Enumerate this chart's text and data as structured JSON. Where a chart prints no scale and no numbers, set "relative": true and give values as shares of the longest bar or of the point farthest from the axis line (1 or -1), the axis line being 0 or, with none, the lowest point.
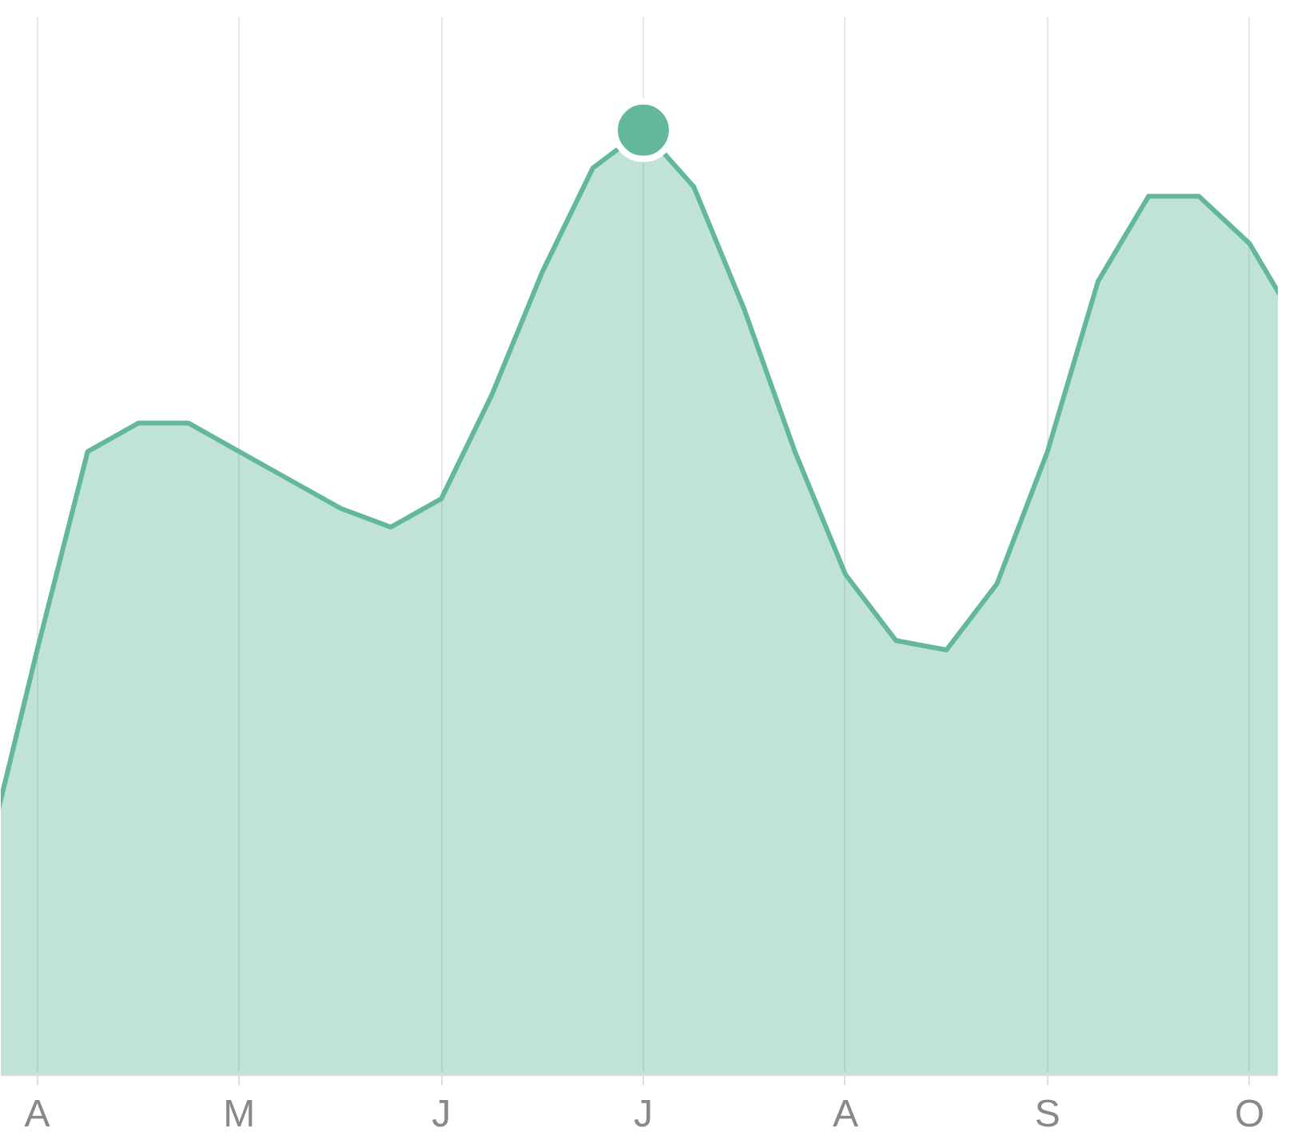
{
  "chart_data": {
    "type": "area",
    "relative": true,
    "grid": "x",
    "categories": [
      null,
      "A",
      null,
      null,
      null,
      "M",
      null,
      null,
      null,
      "J",
      null,
      null,
      null,
      "J",
      null,
      null,
      null,
      "A",
      null,
      null,
      null,
      "S",
      null,
      null,
      null,
      "O",
      null
    ],
    "series": [
      {
        "color": "#63b89b",
        "values": [
          0.23,
          0.45,
          0.66,
          0.69,
          0.69,
          0.66,
          0.63,
          0.6,
          0.58,
          0.61,
          0.72,
          0.85,
          0.96,
          1.0,
          0.94,
          0.81,
          0.66,
          0.53,
          0.46,
          0.45,
          0.52,
          0.66,
          0.84,
          0.93,
          0.93,
          0.88,
          0.79
        ]
      },
      {
        "type": "scatter",
        "marker": "circle",
        "color": "#63b89b",
        "values": [
          null,
          null,
          null,
          null,
          null,
          null,
          null,
          null,
          null,
          null,
          null,
          null,
          null,
          1.0,
          null,
          null,
          null,
          null,
          null,
          null,
          null,
          null,
          null,
          null,
          null,
          null,
          null
        ]
      }
    ]
  }
}
